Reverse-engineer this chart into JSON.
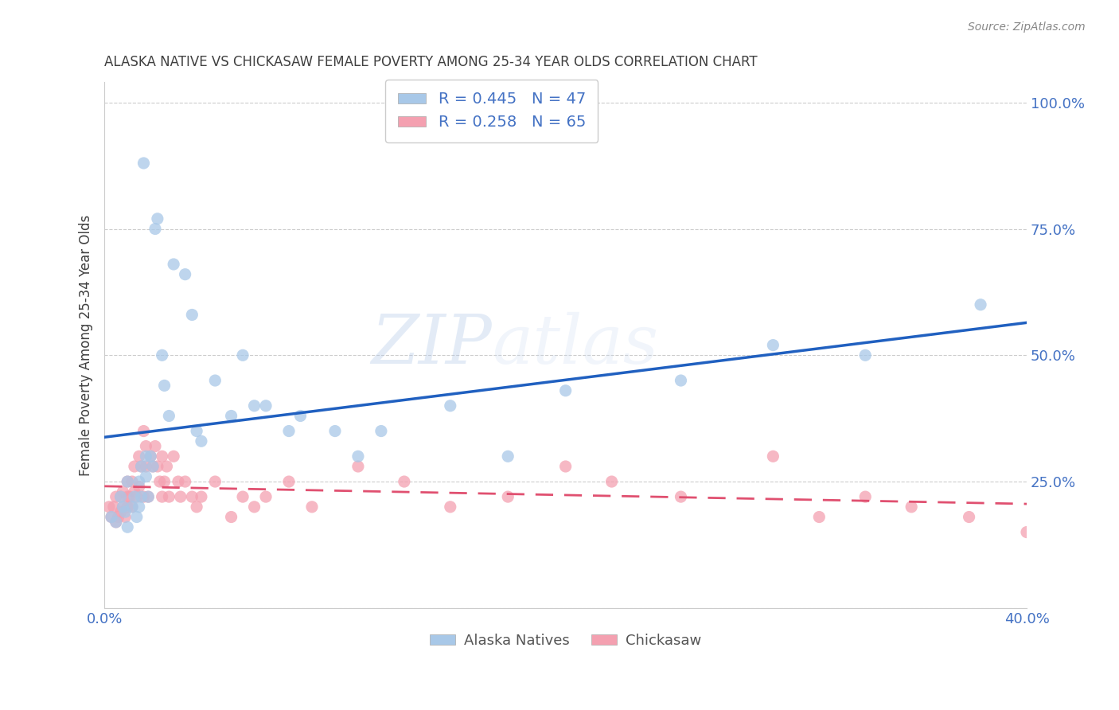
{
  "title": "ALASKA NATIVE VS CHICKASAW FEMALE POVERTY AMONG 25-34 YEAR OLDS CORRELATION CHART",
  "source": "Source: ZipAtlas.com",
  "ylabel": "Female Poverty Among 25-34 Year Olds",
  "xlim": [
    0.0,
    0.4
  ],
  "ylim": [
    0.0,
    1.04
  ],
  "xticks": [
    0.0,
    0.1,
    0.2,
    0.3,
    0.4
  ],
  "xticklabels": [
    "0.0%",
    "",
    "",
    "",
    "40.0%"
  ],
  "yticks": [
    0.0,
    0.25,
    0.5,
    0.75,
    1.0
  ],
  "yticklabels": [
    "",
    "25.0%",
    "50.0%",
    "75.0%",
    "100.0%"
  ],
  "blue_scatter_color": "#a8c8e8",
  "pink_scatter_color": "#f4a0b0",
  "line_blue": "#2060c0",
  "line_pink": "#e05070",
  "alaska_R": 0.445,
  "alaska_N": 47,
  "chickasaw_R": 0.258,
  "chickasaw_N": 65,
  "alaska_x": [
    0.003,
    0.005,
    0.007,
    0.008,
    0.009,
    0.01,
    0.01,
    0.012,
    0.013,
    0.014,
    0.015,
    0.015,
    0.016,
    0.016,
    0.017,
    0.018,
    0.018,
    0.019,
    0.02,
    0.021,
    0.022,
    0.023,
    0.025,
    0.026,
    0.028,
    0.03,
    0.035,
    0.038,
    0.04,
    0.042,
    0.048,
    0.055,
    0.06,
    0.065,
    0.07,
    0.08,
    0.085,
    0.1,
    0.11,
    0.12,
    0.15,
    0.175,
    0.2,
    0.25,
    0.29,
    0.33,
    0.38
  ],
  "alaska_y": [
    0.18,
    0.17,
    0.22,
    0.2,
    0.19,
    0.25,
    0.16,
    0.2,
    0.22,
    0.18,
    0.25,
    0.2,
    0.28,
    0.22,
    0.88,
    0.26,
    0.3,
    0.22,
    0.3,
    0.28,
    0.75,
    0.77,
    0.5,
    0.44,
    0.38,
    0.68,
    0.66,
    0.58,
    0.35,
    0.33,
    0.45,
    0.38,
    0.5,
    0.4,
    0.4,
    0.35,
    0.38,
    0.35,
    0.3,
    0.35,
    0.4,
    0.3,
    0.43,
    0.45,
    0.52,
    0.5,
    0.6
  ],
  "chickasaw_x": [
    0.002,
    0.003,
    0.004,
    0.005,
    0.005,
    0.006,
    0.007,
    0.007,
    0.008,
    0.008,
    0.009,
    0.01,
    0.01,
    0.01,
    0.011,
    0.012,
    0.012,
    0.013,
    0.013,
    0.014,
    0.015,
    0.015,
    0.016,
    0.017,
    0.017,
    0.018,
    0.018,
    0.019,
    0.02,
    0.021,
    0.022,
    0.023,
    0.024,
    0.025,
    0.025,
    0.026,
    0.027,
    0.028,
    0.03,
    0.032,
    0.033,
    0.035,
    0.038,
    0.04,
    0.042,
    0.048,
    0.055,
    0.06,
    0.065,
    0.07,
    0.08,
    0.09,
    0.11,
    0.13,
    0.15,
    0.175,
    0.2,
    0.22,
    0.25,
    0.29,
    0.31,
    0.33,
    0.35,
    0.375,
    0.4
  ],
  "chickasaw_y": [
    0.2,
    0.18,
    0.2,
    0.17,
    0.22,
    0.18,
    0.19,
    0.22,
    0.2,
    0.23,
    0.18,
    0.2,
    0.22,
    0.25,
    0.22,
    0.25,
    0.2,
    0.23,
    0.28,
    0.22,
    0.3,
    0.24,
    0.28,
    0.35,
    0.22,
    0.28,
    0.32,
    0.22,
    0.3,
    0.28,
    0.32,
    0.28,
    0.25,
    0.3,
    0.22,
    0.25,
    0.28,
    0.22,
    0.3,
    0.25,
    0.22,
    0.25,
    0.22,
    0.2,
    0.22,
    0.25,
    0.18,
    0.22,
    0.2,
    0.22,
    0.25,
    0.2,
    0.28,
    0.25,
    0.2,
    0.22,
    0.28,
    0.25,
    0.22,
    0.3,
    0.18,
    0.22,
    0.2,
    0.18,
    0.15
  ],
  "watermark_zip": "ZIP",
  "watermark_atlas": "atlas",
  "background_color": "#ffffff",
  "grid_color": "#cccccc",
  "tick_color": "#4472c4",
  "title_color": "#404040",
  "ylabel_color": "#404040"
}
